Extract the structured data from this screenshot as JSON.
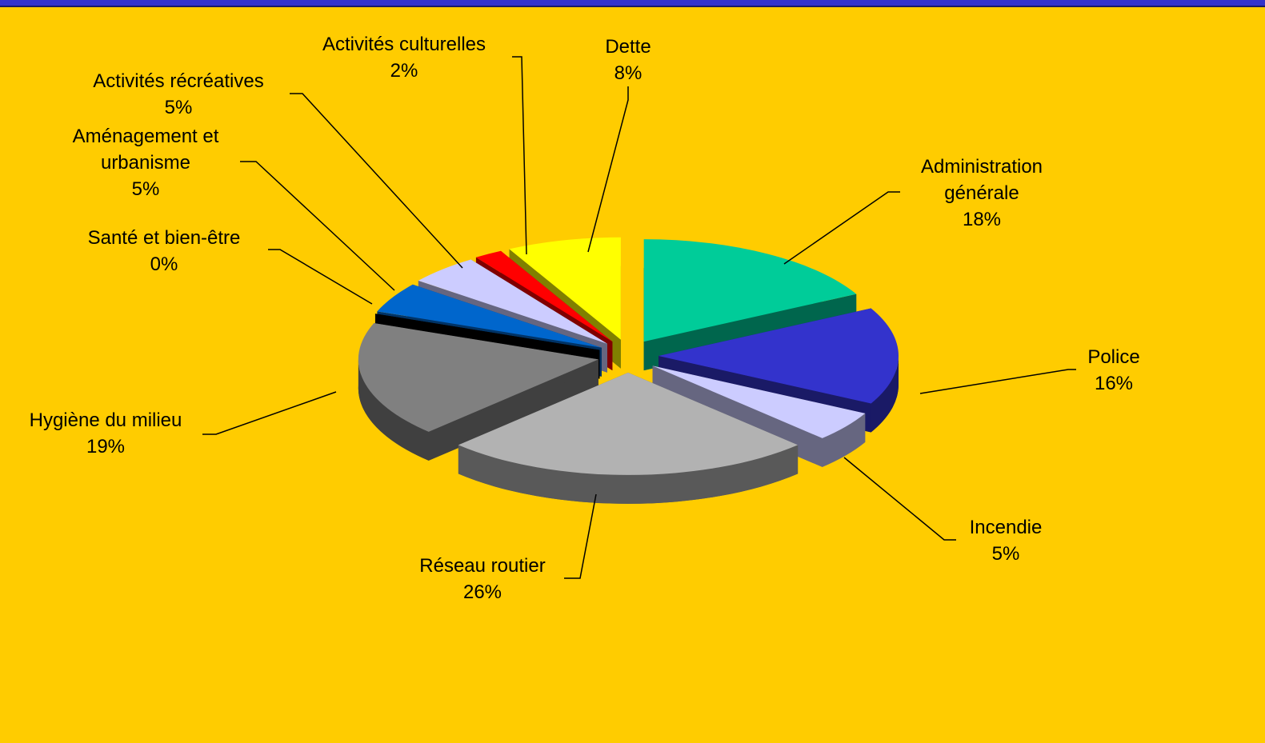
{
  "chart_data": {
    "type": "pie3d",
    "categories": [
      "Administration générale",
      "Police",
      "Incendie",
      "Réseau routier",
      "Hygiène du milieu",
      "Santé et bien-être",
      "Aménagement et urbanisme",
      "Activités récréatives",
      "Activités culturelles",
      "Dette"
    ],
    "values": [
      18,
      16,
      5,
      26,
      19,
      0,
      5,
      5,
      2,
      8
    ],
    "value_labels": [
      "18%",
      "16%",
      "5%",
      "26%",
      "19%",
      "0%",
      "5%",
      "5%",
      "2%",
      "8%"
    ],
    "colors": [
      "#00cc99",
      "#3333cc",
      "#ccccff",
      "#b2b2b2",
      "#808080",
      "#000000",
      "#0066cc",
      "#ccccff",
      "#ff0000",
      "#ffff00"
    ]
  }
}
